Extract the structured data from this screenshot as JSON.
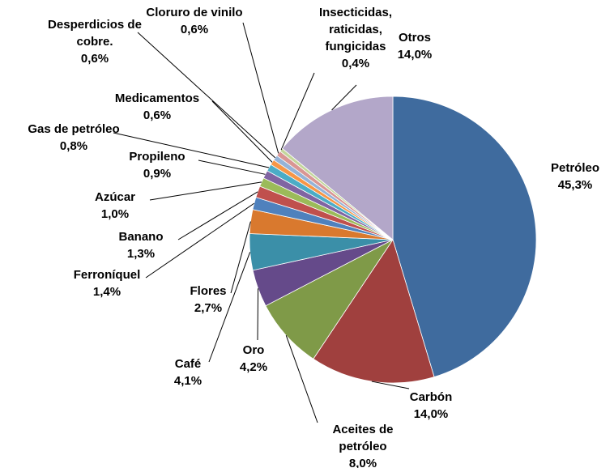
{
  "chart_data": {
    "type": "pie",
    "categories": [
      "Petróleo",
      "Carbón",
      "Aceites de petróleo",
      "Oro",
      "Café",
      "Flores",
      "Ferroníquel",
      "Banano",
      "Azúcar",
      "Propileno",
      "Gas de petróleo",
      "Medicamentos",
      "Desperdicios de cobre.",
      "Cloruro de vinilo",
      "Insecticidas, raticidas, fungicidas",
      "Otros"
    ],
    "values": [
      45.3,
      14.0,
      8.0,
      4.2,
      4.1,
      2.7,
      1.4,
      1.3,
      1.0,
      0.9,
      0.8,
      0.6,
      0.6,
      0.6,
      0.4,
      14.0
    ],
    "value_labels": [
      "45,3%",
      "14,0%",
      "8,0%",
      "4,2%",
      "4,1%",
      "2,7%",
      "1,4%",
      "1,3%",
      "1,0%",
      "0,9%",
      "0,8%",
      "0,6%",
      "0,6%",
      "0,6%",
      "0,4%",
      "14,0%"
    ],
    "colors": [
      "#3f6b9e",
      "#a0403e",
      "#7f9a48",
      "#654a8a",
      "#3b8fa8",
      "#d9792e",
      "#4f81bd",
      "#c0504d",
      "#9bbb59",
      "#8064a2",
      "#4bacc6",
      "#f79646",
      "#95b3d7",
      "#d99694",
      "#c3d69b",
      "#b3a7c9"
    ]
  }
}
